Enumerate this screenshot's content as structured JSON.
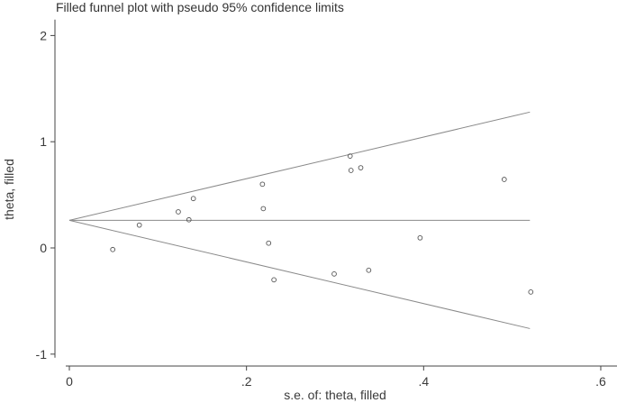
{
  "chart_data": {
    "type": "scatter",
    "title": "Filled funnel plot with pseudo 95% confidence limits",
    "xlabel": "s.e. of: theta, filled",
    "ylabel": "theta, filled",
    "xlim": [
      0,
      0.62
    ],
    "ylim": [
      -1.05,
      2.15
    ],
    "x_ticks": [
      0,
      0.2,
      0.4,
      0.6
    ],
    "x_tick_labels": [
      "0",
      ".2",
      ".4",
      ".6"
    ],
    "y_ticks": [
      -1,
      0,
      1,
      2
    ],
    "y_tick_labels": [
      "-1",
      "0",
      "1",
      "2"
    ],
    "grid": false,
    "pooled_estimate": 0.26,
    "funnel_max_se": 0.52,
    "z": 1.96,
    "series": [
      {
        "marker": "hollow-circle",
        "points": [
          {
            "x": 0.049,
            "y": -0.015
          },
          {
            "x": 0.079,
            "y": 0.215
          },
          {
            "x": 0.123,
            "y": 0.34
          },
          {
            "x": 0.135,
            "y": 0.265
          },
          {
            "x": 0.14,
            "y": 0.465
          },
          {
            "x": 0.218,
            "y": 0.6
          },
          {
            "x": 0.219,
            "y": 0.37
          },
          {
            "x": 0.225,
            "y": 0.045
          },
          {
            "x": 0.231,
            "y": -0.3
          },
          {
            "x": 0.299,
            "y": -0.245
          },
          {
            "x": 0.317,
            "y": 0.865
          },
          {
            "x": 0.318,
            "y": 0.73
          },
          {
            "x": 0.329,
            "y": 0.755
          },
          {
            "x": 0.338,
            "y": -0.21
          },
          {
            "x": 0.396,
            "y": 0.095
          },
          {
            "x": 0.491,
            "y": 0.645
          },
          {
            "x": 0.521,
            "y": -0.415
          }
        ]
      }
    ]
  }
}
